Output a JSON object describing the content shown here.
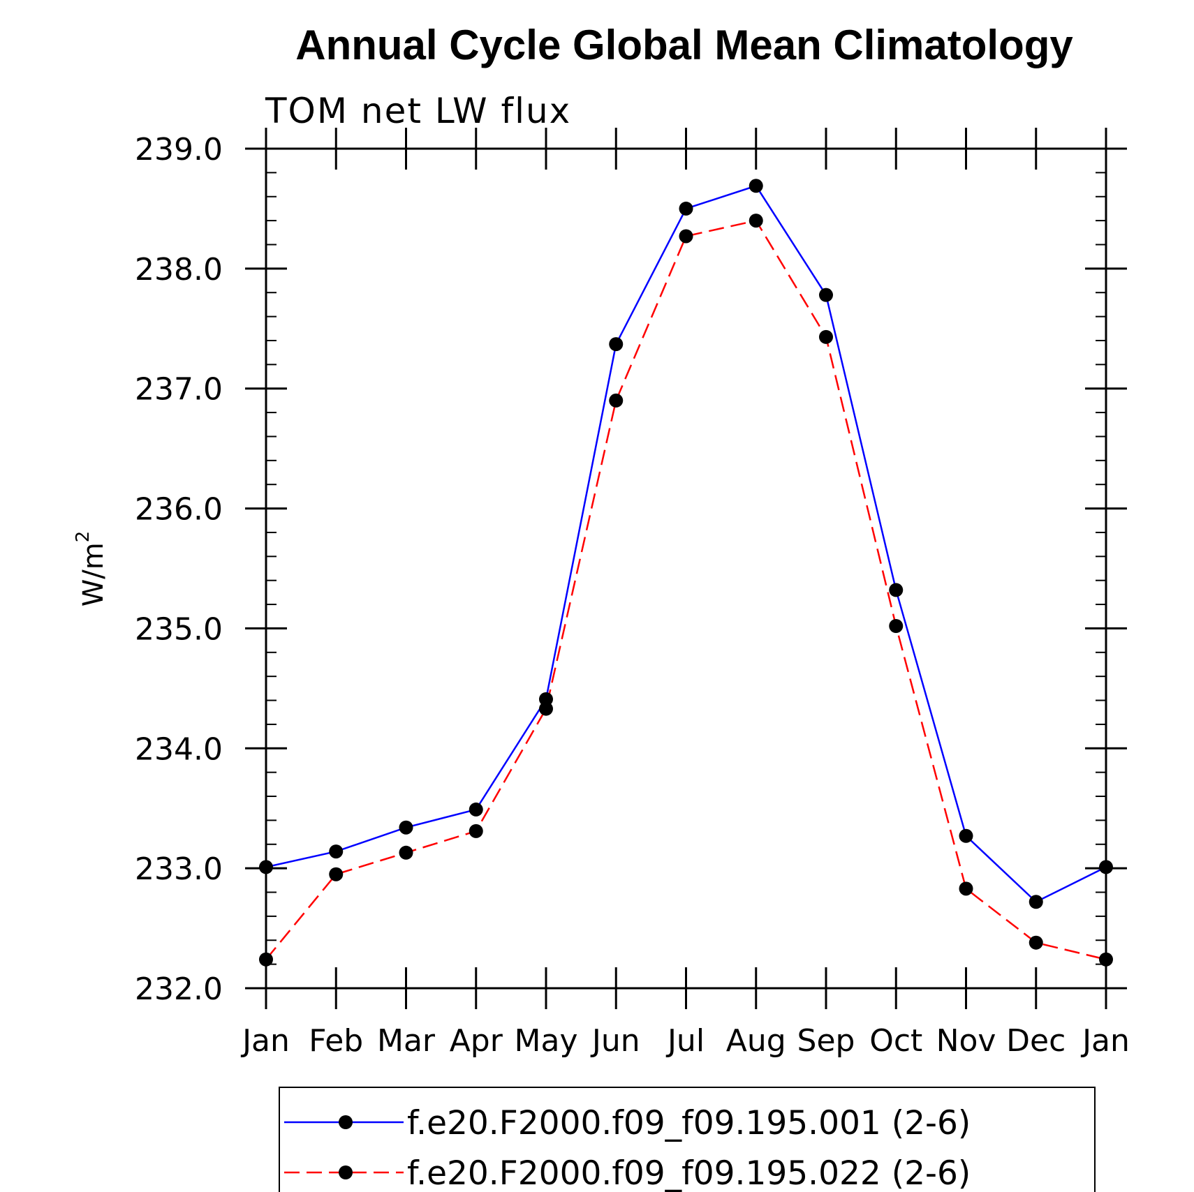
{
  "chart_data": {
    "type": "line",
    "title": "Annual Cycle Global Mean Climatology",
    "subtitle": "TOM net LW flux",
    "ylabel": "W/m",
    "ylabel_superscript": "2",
    "xlabel": "",
    "categories": [
      "Jan",
      "Feb",
      "Mar",
      "Apr",
      "May",
      "Jun",
      "Jul",
      "Aug",
      "Sep",
      "Oct",
      "Nov",
      "Dec",
      "Jan"
    ],
    "yticks": [
      "232.0",
      "233.0",
      "234.0",
      "235.0",
      "236.0",
      "237.0",
      "238.0",
      "239.0"
    ],
    "ylim": [
      232.0,
      239.0
    ],
    "grid": false,
    "legend_position": "bottom",
    "series": [
      {
        "name": "f.e20.F2000.f09_f09.195.001 (2-6)",
        "color": "#0000ff",
        "dash": "solid",
        "marker": "filled-circle",
        "values": [
          233.01,
          233.14,
          233.34,
          233.49,
          234.41,
          237.37,
          238.5,
          238.69,
          237.78,
          235.32,
          233.27,
          232.72,
          233.01
        ]
      },
      {
        "name": "f.e20.F2000.f09_f09.195.022 (2-6)",
        "color": "#ff0000",
        "dash": "dashed",
        "marker": "filled-circle",
        "values": [
          232.24,
          232.95,
          233.13,
          233.31,
          234.33,
          236.9,
          238.27,
          238.4,
          237.43,
          235.02,
          232.83,
          232.38,
          232.24
        ]
      }
    ]
  }
}
